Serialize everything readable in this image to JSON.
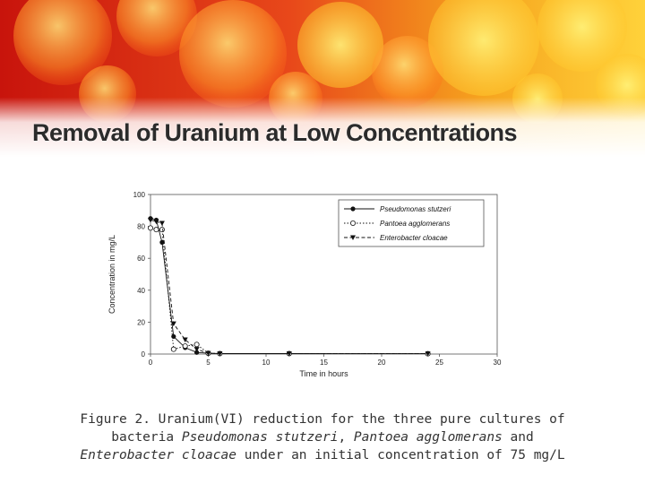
{
  "slide": {
    "title": "Removal of Uranium at Low Concentrations"
  },
  "caption": {
    "line1": "Figure 2. Uranium(VI) reduction for the three pure cultures of",
    "line2_prefix": "bacteria ",
    "line2_species1": "Pseudomonas stutzeri",
    "line2_sep": ", ",
    "line2_species2": "Pantoea agglomerans",
    "line2_suffix": " and",
    "line3_species3": "Enterobacter cloacae",
    "line3_suffix": " under an initial concentration of 75 mg/L"
  },
  "colors": {
    "banner_red": "#d81c10",
    "banner_orange": "#f2a21a",
    "banner_yellow": "#ffe84a",
    "title_text": "#2b2b2b",
    "series_line": "#111111"
  },
  "chart_data": {
    "type": "line",
    "title": "",
    "xlabel": "Time in hours",
    "ylabel": "Concentration in mg/L",
    "xlim": [
      0,
      30
    ],
    "ylim": [
      0,
      100
    ],
    "xticks": [
      0,
      5,
      10,
      15,
      20,
      25,
      30
    ],
    "yticks": [
      0,
      20,
      40,
      60,
      80,
      100
    ],
    "grid": false,
    "legend": "top-right",
    "series": [
      {
        "name": "Pseudomonas stutzeri",
        "marker": "filled-circle",
        "dash": "solid",
        "x": [
          0,
          0.5,
          1,
          2,
          3,
          4,
          5,
          6,
          12,
          24
        ],
        "y": [
          85,
          84,
          70,
          11,
          4,
          1,
          0.5,
          0.3,
          0.3,
          0.2
        ]
      },
      {
        "name": "Pantoea agglomerans",
        "marker": "open-circle",
        "dash": "dotted",
        "x": [
          0,
          0.5,
          1,
          2,
          3,
          4,
          5,
          6,
          12,
          24
        ],
        "y": [
          79,
          78,
          78,
          3,
          5,
          6,
          0.5,
          0.3,
          0.3,
          0.2
        ]
      },
      {
        "name": "Enterobacter cloacae",
        "marker": "filled-triangle",
        "dash": "dashed",
        "x": [
          0,
          0.5,
          1,
          2,
          3,
          4,
          5,
          6,
          12,
          24
        ],
        "y": [
          84,
          83,
          82,
          19,
          9,
          3,
          0.5,
          0.3,
          0.3,
          0.2
        ]
      }
    ]
  }
}
